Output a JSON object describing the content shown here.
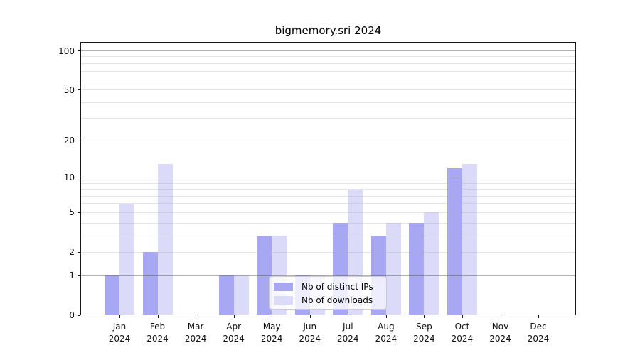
{
  "chart": {
    "title": "bigmemory.sri 2024"
  },
  "chart_data": {
    "type": "bar",
    "title": "bigmemory.sri 2024",
    "categories": [
      "Jan",
      "Feb",
      "Mar",
      "Apr",
      "May",
      "Jun",
      "Jul",
      "Aug",
      "Sep",
      "Oct",
      "Nov",
      "Dec"
    ],
    "x_tick_year": "2024",
    "series": [
      {
        "name": "Nb of distinct IPs",
        "color": "#a7a7f3",
        "values": [
          1,
          2,
          0,
          1,
          3,
          1,
          4,
          3,
          4,
          12,
          0,
          0
        ]
      },
      {
        "name": "Nb of downloads",
        "color": "#dbdbf9",
        "values": [
          6,
          13,
          0,
          1,
          3,
          1,
          8,
          4,
          5,
          13,
          0,
          0
        ]
      }
    ],
    "y_axis": {
      "scale": "log1p",
      "tick_labels": [
        100,
        50,
        20,
        10,
        5,
        2,
        1,
        0
      ],
      "major_gridlines": [
        1,
        10,
        100
      ],
      "minor_gridlines": [
        2,
        3,
        4,
        5,
        6,
        7,
        8,
        9,
        20,
        30,
        40,
        50,
        60,
        70,
        80,
        90
      ],
      "ylim": [
        0,
        116
      ]
    },
    "legend": {
      "position": "lower center",
      "items": [
        "Nb of distinct IPs",
        "Nb of downloads"
      ]
    },
    "grid": true,
    "background_color": "#ffffff",
    "frame_color": "#1a1a1a"
  }
}
